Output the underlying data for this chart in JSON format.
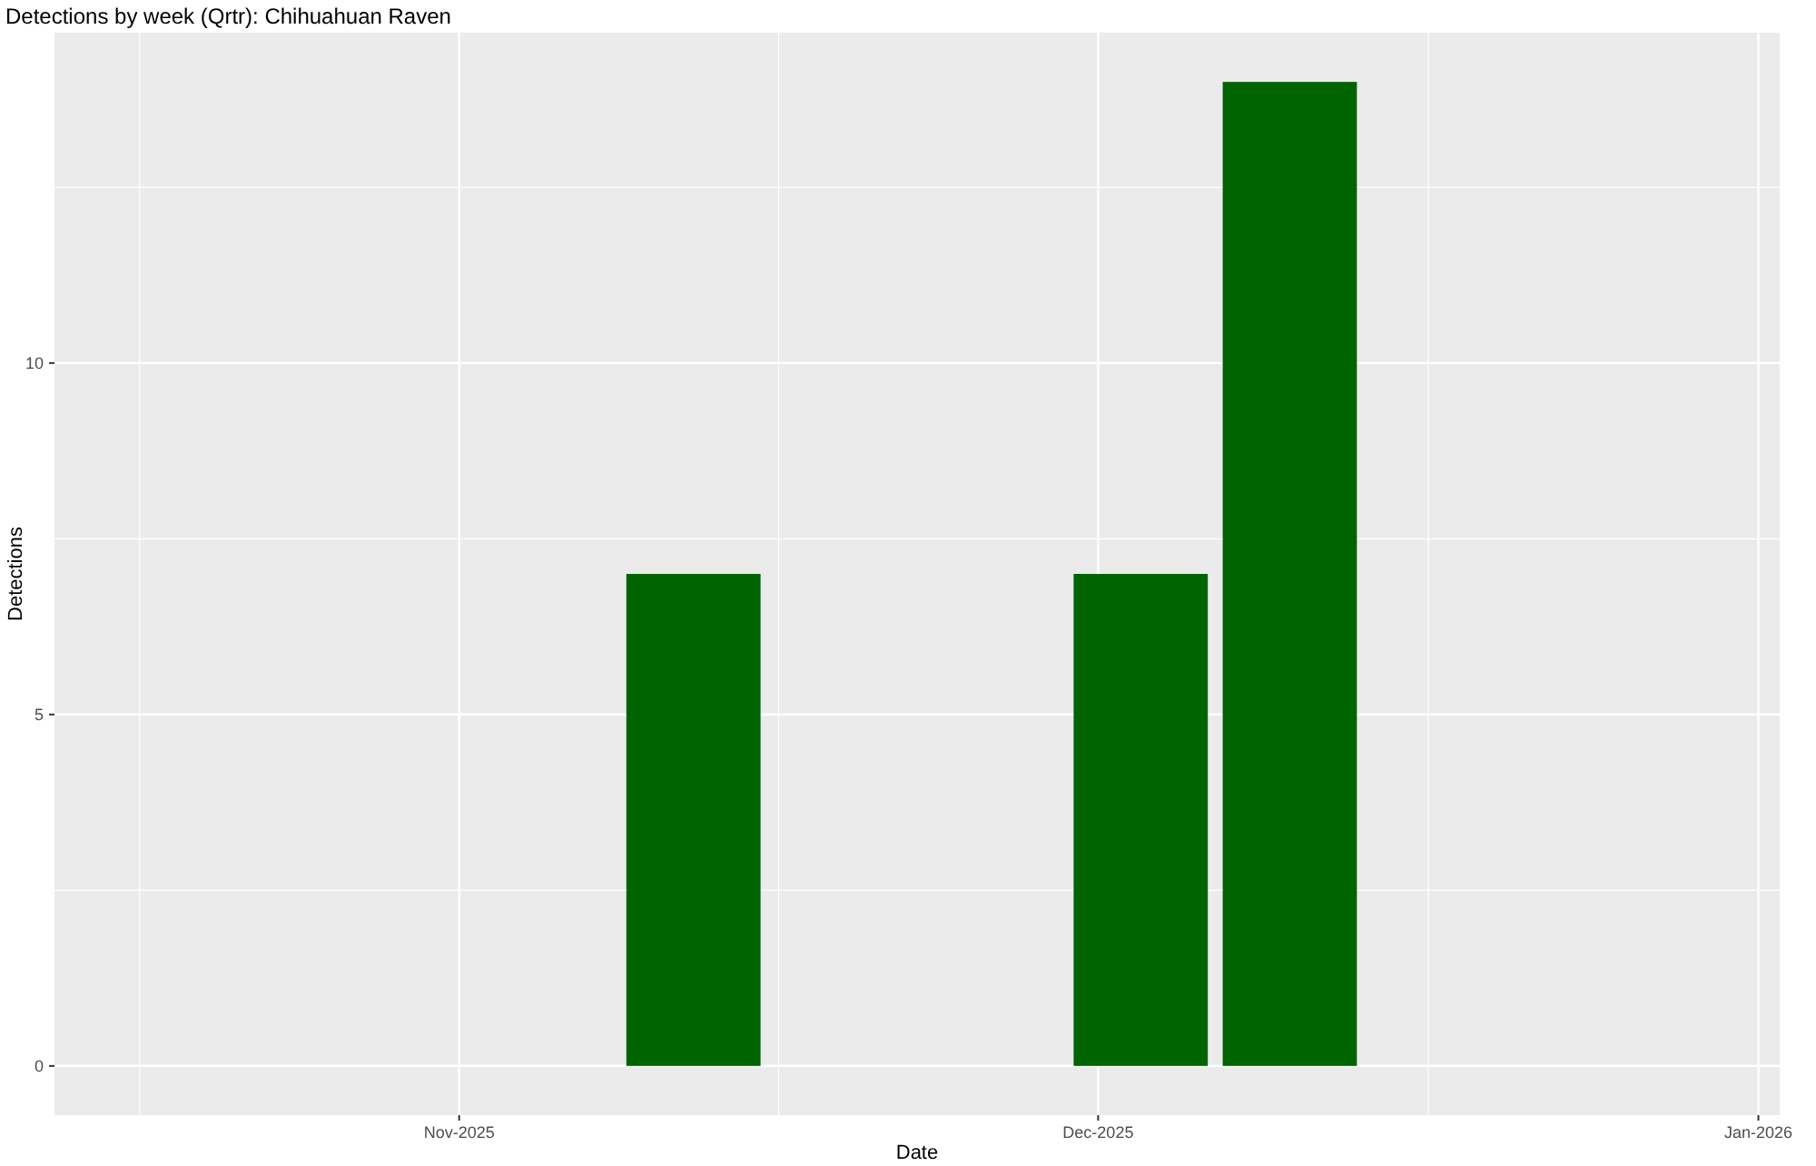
{
  "chart_data": {
    "type": "bar",
    "title": "Detections by week (Qrtr): Chihuahuan Raven",
    "xlabel": "Date",
    "ylabel": "Detections",
    "x": [
      "2025-11-12",
      "2025-12-03",
      "2025-12-10"
    ],
    "values": [
      7,
      7,
      14
    ],
    "color": "#006400",
    "xlim": [
      "2025-10-13",
      "2026-01-02"
    ],
    "xticks": [
      {
        "value": "2025-11-01",
        "label": "Nov-2025"
      },
      {
        "value": "2025-12-01",
        "label": "Dec-2025"
      },
      {
        "value": "2026-01-01",
        "label": "Jan-2026"
      }
    ],
    "ylim": [
      -0.7,
      14.7
    ],
    "yticks": [
      0,
      5,
      10
    ],
    "grid": true
  }
}
